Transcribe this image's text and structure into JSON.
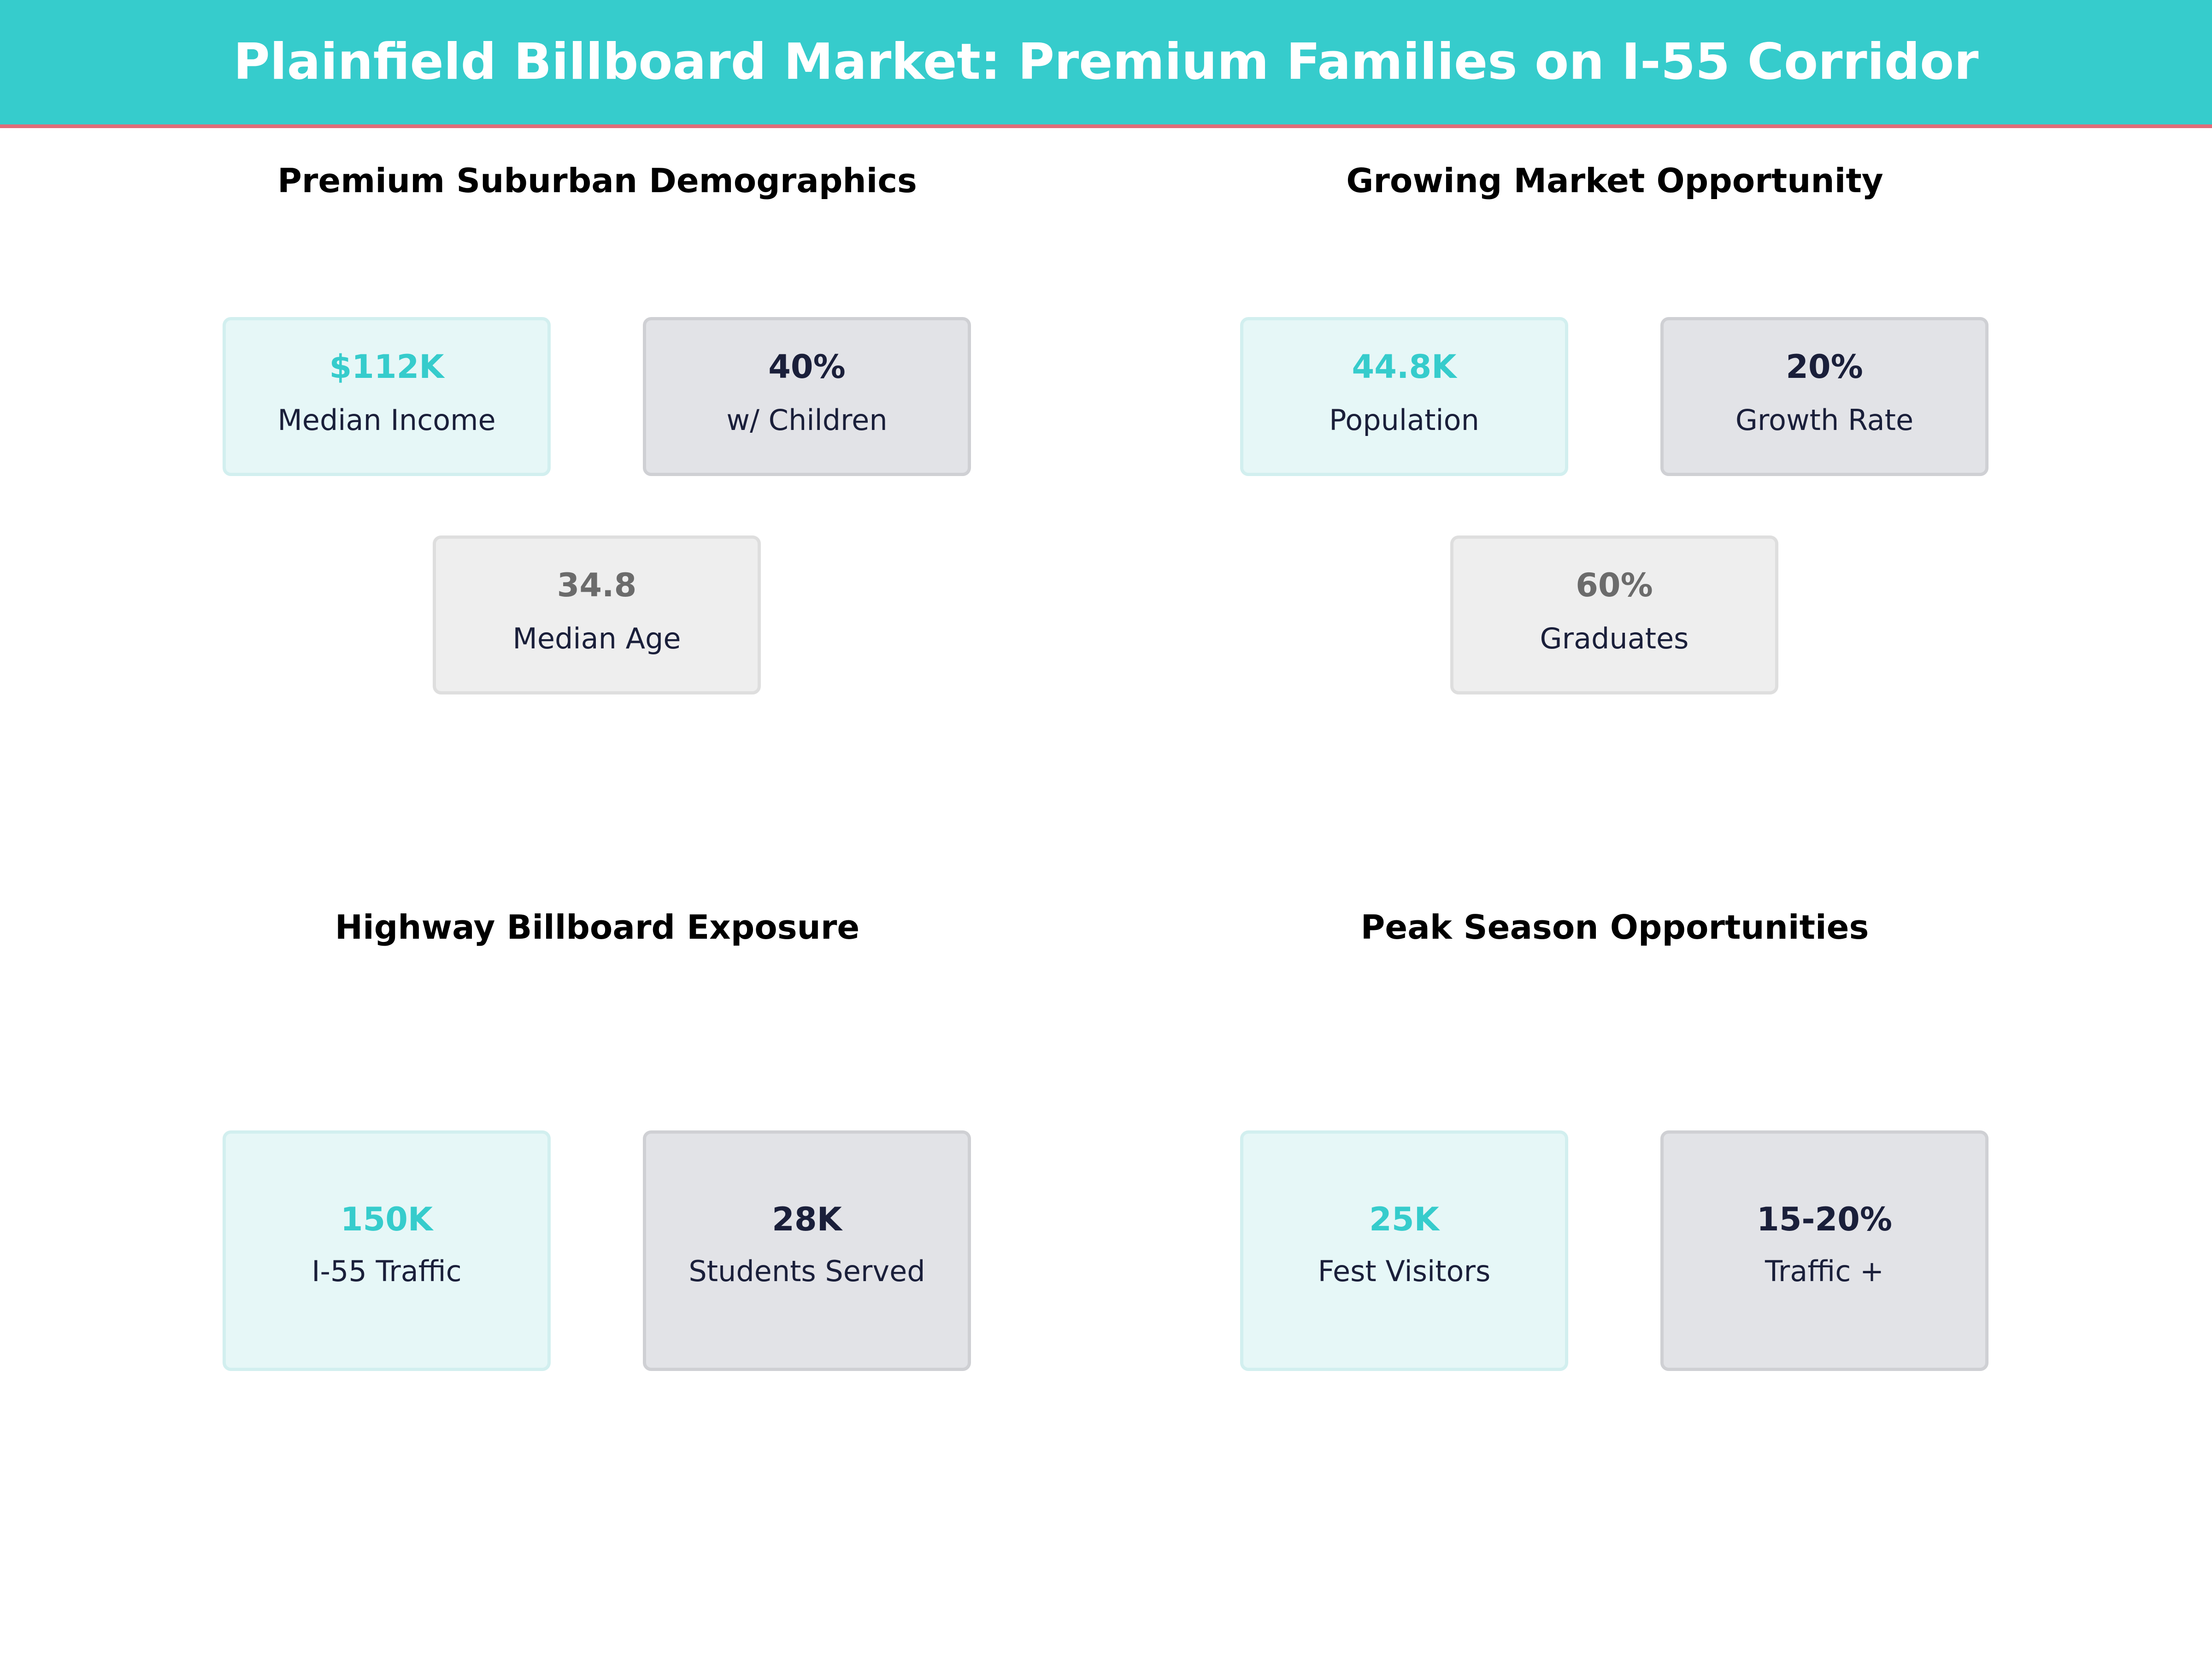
{
  "title": "Plainfield Billboard Market: Premium Families on I-55 Corridor",
  "colors": {
    "banner": "#36cccc",
    "banner_rule": "#e06c78",
    "teal": "#36cccc",
    "navy": "#1a1f3a",
    "gray": "#6b6b6b"
  },
  "panels": {
    "demographics": {
      "title": "Premium Suburban Demographics",
      "cards": [
        {
          "value": "$112K",
          "label": "Median Income"
        },
        {
          "value": "40%",
          "label": "w/ Children"
        },
        {
          "value": "34.8",
          "label": "Median Age"
        }
      ]
    },
    "market": {
      "title": "Growing Market Opportunity",
      "cards": [
        {
          "value": "44.8K",
          "label": "Population"
        },
        {
          "value": "20%",
          "label": "Growth Rate"
        },
        {
          "value": "60%",
          "label": "Graduates"
        }
      ]
    },
    "exposure": {
      "title": "Highway Billboard Exposure",
      "cards": [
        {
          "value": "150K",
          "label": "I-55 Traffic"
        },
        {
          "value": "28K",
          "label": "Students Served"
        }
      ]
    },
    "season": {
      "title": "Peak Season Opportunities",
      "cards": [
        {
          "value": "25K",
          "label": "Fest Visitors"
        },
        {
          "value": "15-20%",
          "label": "Traffic +"
        }
      ]
    }
  }
}
